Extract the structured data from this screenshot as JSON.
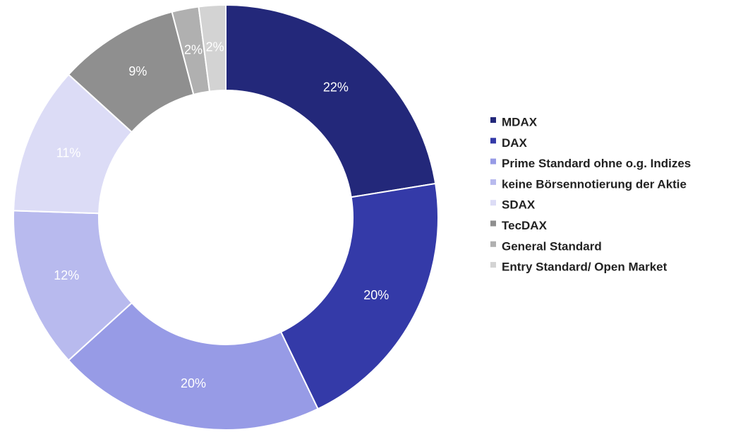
{
  "chart_data": {
    "type": "donut",
    "categories": [
      "MDAX",
      "DAX",
      "Prime Standard ohne o.g. Indizes",
      "keine Börsennotierung der Aktie",
      "SDAX",
      "TecDAX",
      "General Standard",
      "Entry Standard/ Open Market"
    ],
    "values": [
      22,
      20,
      20,
      12,
      11,
      9,
      2,
      2
    ],
    "value_labels": [
      "22%",
      "20%",
      "20%",
      "12%",
      "11%",
      "9%",
      "2%",
      "2%"
    ],
    "colors": [
      "#23287a",
      "#343aa8",
      "#979be6",
      "#b8baee",
      "#dcdcf6",
      "#8f8f8f",
      "#b0b0b0",
      "#d3d3d3"
    ]
  }
}
